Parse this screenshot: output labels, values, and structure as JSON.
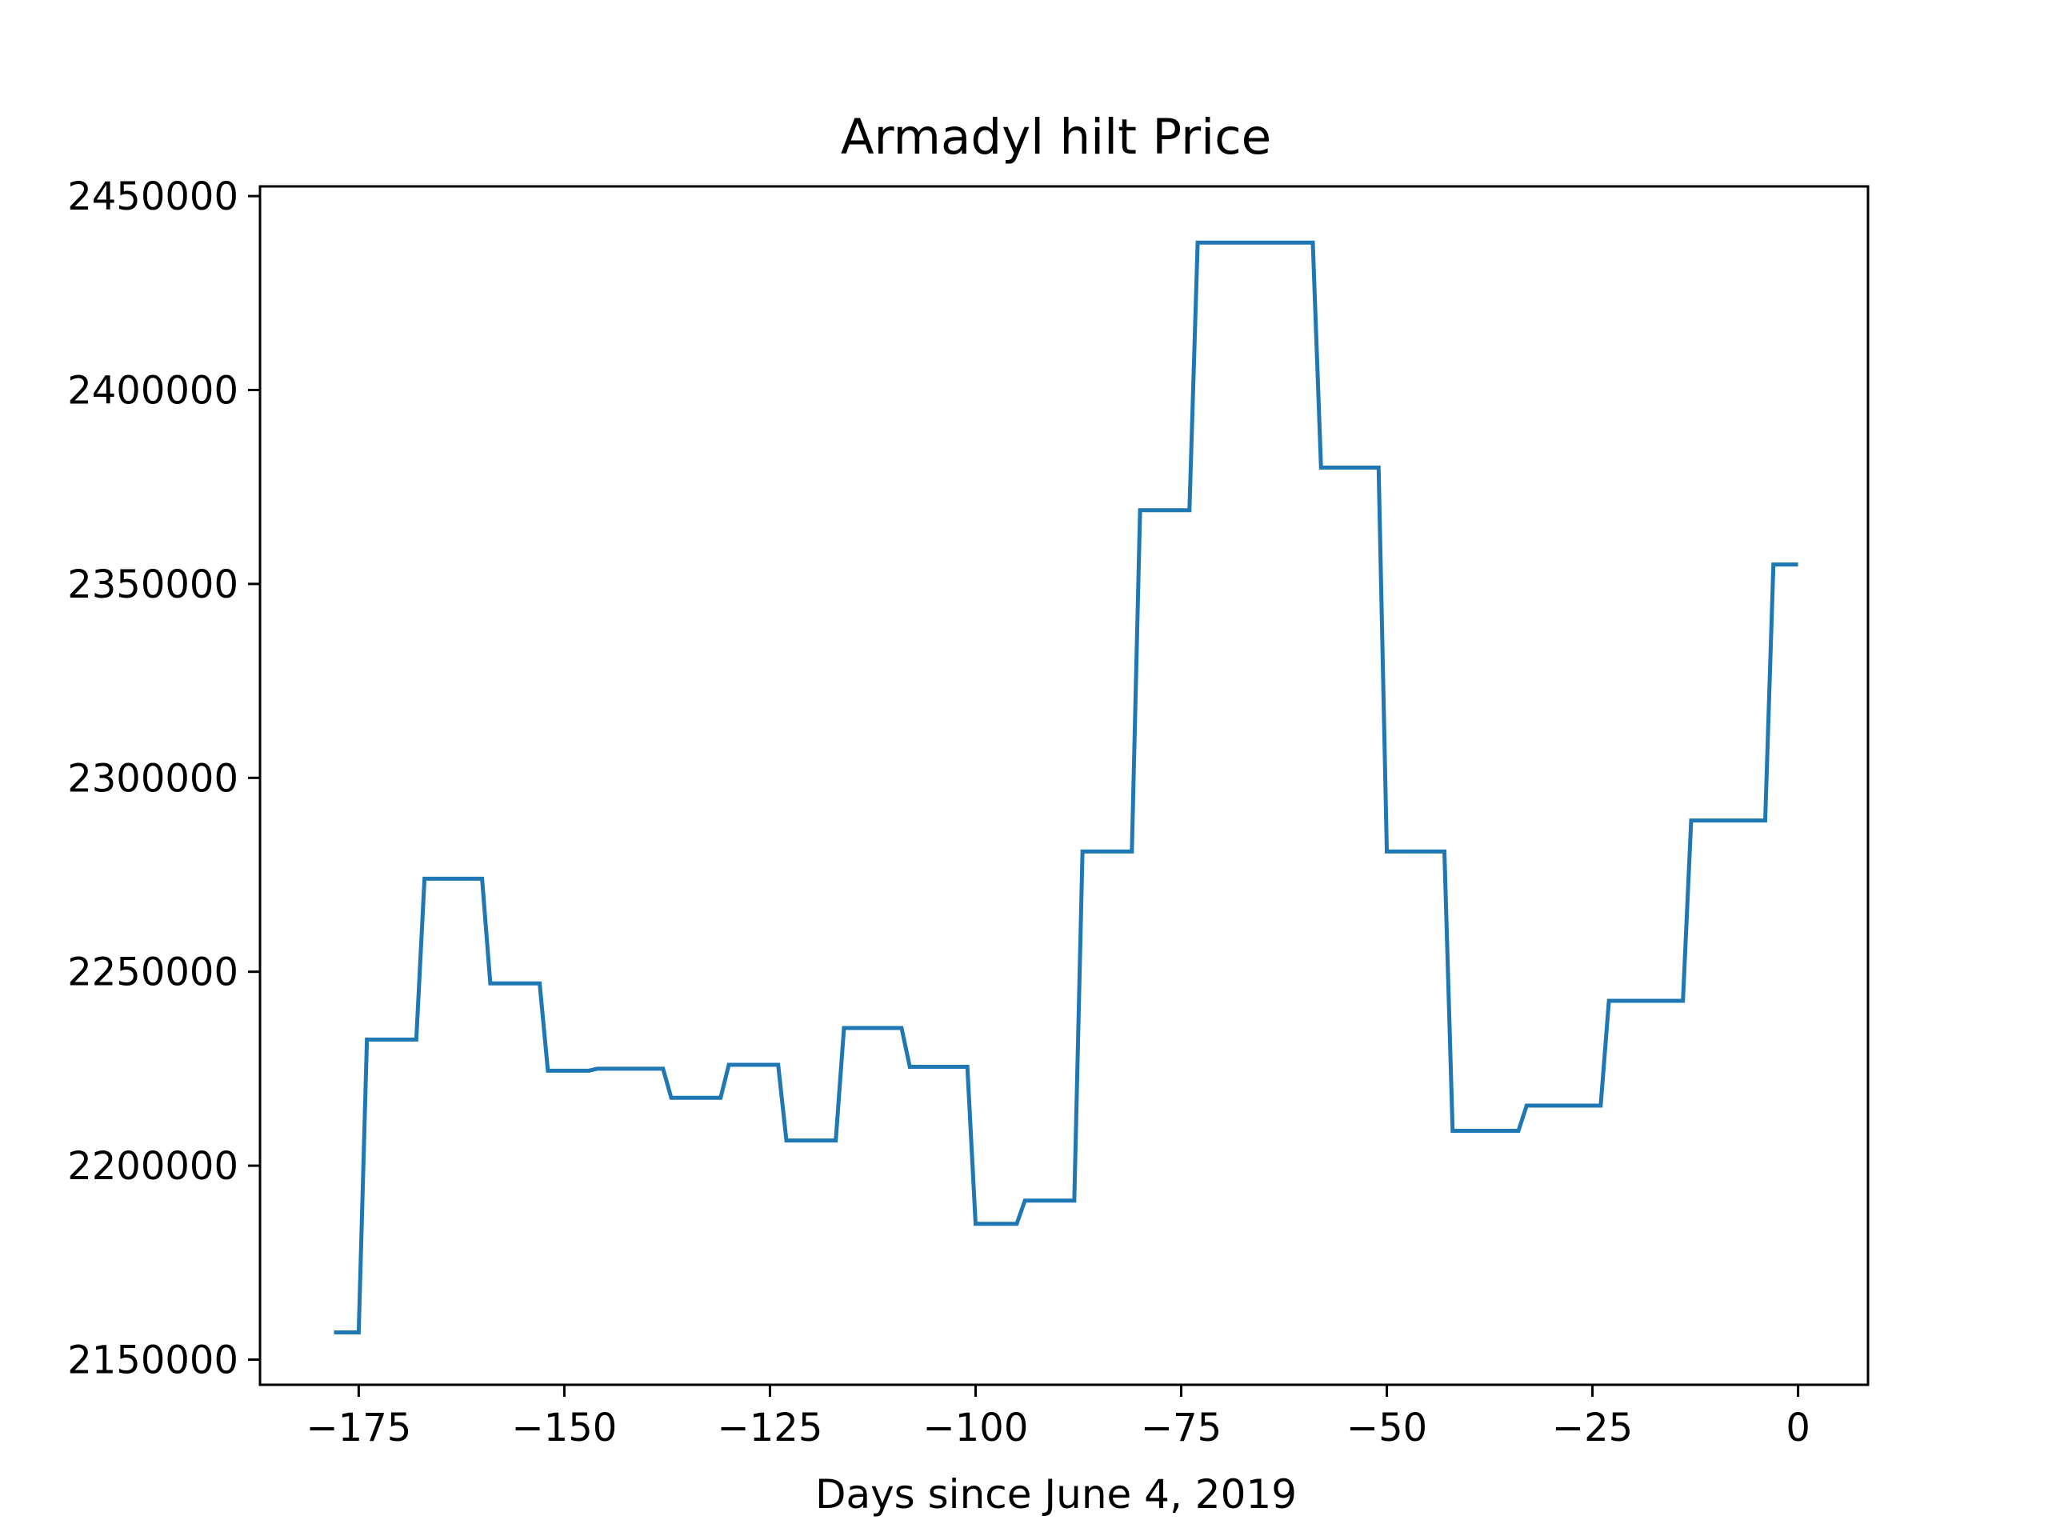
{
  "chart_data": {
    "type": "line",
    "title": "Armadyl hilt Price",
    "xlabel": "Days since June 4, 2019",
    "ylabel": "",
    "xlim": [
      -187,
      8.5
    ],
    "ylim": [
      2143500,
      2452500
    ],
    "grid": false,
    "legend": "none",
    "x_ticks": [
      -175,
      -150,
      -125,
      -100,
      -75,
      -50,
      -25,
      0
    ],
    "x_tick_labels": [
      "−175",
      "−150",
      "−125",
      "−100",
      "−75",
      "−50",
      "−25",
      "0"
    ],
    "y_ticks": [
      2150000,
      2200000,
      2250000,
      2300000,
      2350000,
      2400000,
      2450000
    ],
    "y_tick_labels": [
      "2150000",
      "2200000",
      "2250000",
      "2300000",
      "2350000",
      "2400000",
      "2450000"
    ],
    "series": [
      {
        "color": "#1f77b4",
        "x": [
          -178,
          -175,
          -174,
          -168,
          -167,
          -160,
          -159,
          -153,
          -152,
          -147,
          -146,
          -138,
          -137,
          -131,
          -130,
          -124,
          -123,
          -117,
          -116,
          -109,
          -108,
          -101,
          -100,
          -95,
          -94,
          -88,
          -87,
          -81,
          -80,
          -74,
          -73,
          -66,
          -59,
          -58,
          -51,
          -50,
          -43,
          -42,
          -34,
          -33,
          -24,
          -23,
          -14,
          -13,
          -4,
          -3,
          0
        ],
        "y": [
          2157000,
          2157000,
          2232500,
          2232500,
          2274000,
          2274000,
          2247000,
          2247000,
          2224500,
          2224500,
          2225000,
          2225000,
          2217500,
          2217500,
          2226000,
          2226000,
          2206500,
          2206500,
          2235500,
          2235500,
          2225500,
          2225500,
          2185000,
          2185000,
          2191000,
          2191000,
          2281000,
          2281000,
          2369000,
          2369000,
          2438000,
          2438000,
          2438000,
          2380000,
          2380000,
          2281000,
          2281000,
          2209000,
          2209000,
          2215500,
          2215500,
          2242500,
          2242500,
          2289000,
          2289000,
          2355000,
          2355000
        ]
      }
    ]
  }
}
